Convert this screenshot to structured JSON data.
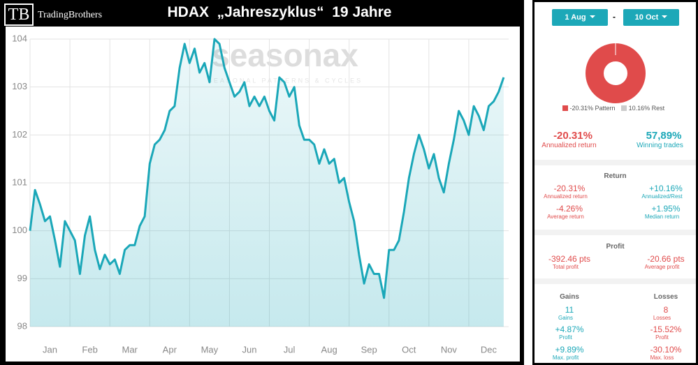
{
  "header": {
    "logo": "TB",
    "brand": "TradingBrothers",
    "title": "HDAX  „Jahreszyklus“  19 Jahre"
  },
  "chart_data": {
    "type": "line",
    "watermark": "seasonax",
    "watermark_subtitle": "SEASONAL PATTERNS & CYCLES",
    "categories": [
      "Jan",
      "Feb",
      "Mar",
      "Apr",
      "May",
      "Jun",
      "Jul",
      "Aug",
      "Sep",
      "Oct",
      "Nov",
      "Dec"
    ],
    "values": [
      [
        100.0,
        100.85,
        100.55,
        100.2,
        100.3,
        99.8,
        99.25,
        100.2
      ],
      [
        100.0,
        99.8,
        99.1,
        99.9,
        100.3,
        99.6,
        99.2,
        99.5
      ],
      [
        99.3,
        99.4,
        99.1,
        99.6,
        99.7,
        99.7,
        100.1,
        100.3
      ],
      [
        101.4,
        101.8,
        101.9,
        102.1,
        102.5,
        102.6,
        103.4,
        103.9
      ],
      [
        103.5,
        103.8,
        103.3,
        103.5,
        103.1,
        104.0,
        103.9,
        103.4
      ],
      [
        103.1,
        102.8,
        102.9,
        103.1,
        102.6,
        102.8,
        102.6,
        102.8
      ],
      [
        102.5,
        102.3,
        103.2,
        103.1,
        102.8,
        103.0,
        102.2,
        101.9
      ],
      [
        101.9,
        101.8,
        101.4,
        101.7,
        101.4,
        101.5,
        101.0,
        101.1
      ],
      [
        100.6,
        100.2,
        99.5,
        98.9,
        99.3,
        99.1,
        99.1,
        98.6
      ],
      [
        99.6,
        99.6,
        99.8,
        100.4,
        101.1,
        101.6,
        102.0,
        101.7
      ],
      [
        101.3,
        101.6,
        101.1,
        100.8,
        101.4,
        101.9,
        102.5,
        102.3
      ],
      [
        102.0,
        102.6,
        102.4,
        102.1,
        102.6,
        102.7,
        102.9,
        103.2
      ]
    ],
    "color": "#1aa7b8",
    "ylim": [
      98,
      104
    ],
    "yticks": [
      98,
      99,
      100,
      101,
      102,
      103,
      104
    ],
    "grid": true
  },
  "panel": {
    "start": "1 Aug",
    "separator": "-",
    "end": "10 Oct",
    "legend": [
      "-20.31% Pattern",
      "10.16% Rest"
    ],
    "summary": [
      {
        "value": "-20.31%",
        "label": "Annualized return"
      },
      {
        "value": "57,89%",
        "label": "Winning trades"
      }
    ],
    "return": {
      "title": "Return",
      "items": [
        {
          "value": "-20.31%",
          "label": "Annualized return"
        },
        {
          "value": "+10.16%",
          "label": "Annualized/Rest"
        },
        {
          "value": "-4.26%",
          "label": "Average return"
        },
        {
          "value": "+1.95%",
          "label": "Median return"
        }
      ]
    },
    "profit": {
      "title": "Profit",
      "items": [
        {
          "value": "-392.46 pts",
          "label": "Total profit"
        },
        {
          "value": "-20.66 pts",
          "label": "Average profit"
        }
      ]
    },
    "gains": {
      "title": "Gains",
      "items": [
        {
          "value": "11",
          "label": "Gains"
        },
        {
          "value": "+4.87%",
          "label": "Profit"
        },
        {
          "value": "+9.89%",
          "label": "Max. profit"
        }
      ]
    },
    "losses": {
      "title": "Losses",
      "items": [
        {
          "value": "8",
          "label": "Losses"
        },
        {
          "value": "-15.52%",
          "label": "Profit"
        },
        {
          "value": "-30.10%",
          "label": "Max. loss"
        }
      ]
    }
  }
}
